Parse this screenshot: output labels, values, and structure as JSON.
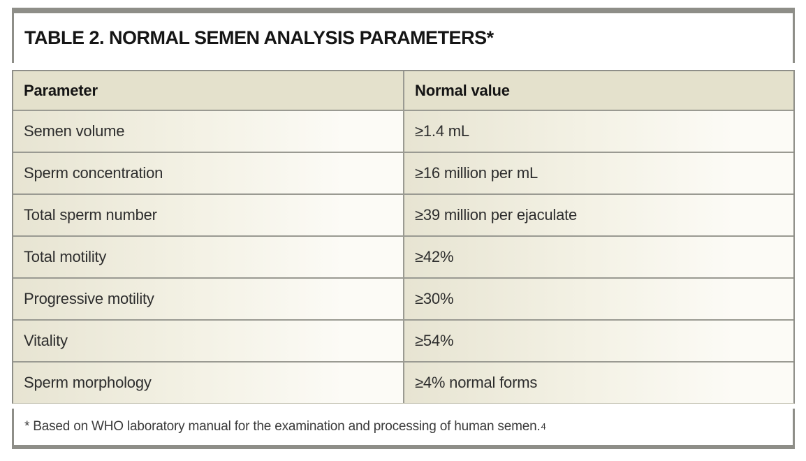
{
  "title": {
    "label": "TABLE 2. ",
    "text": "NORMAL SEMEN ANALYSIS PARAMETERS*"
  },
  "table": {
    "columns": [
      "Parameter",
      "Normal value"
    ],
    "rows": [
      {
        "parameter": "Semen volume",
        "value": "≥1.4 mL"
      },
      {
        "parameter": "Sperm concentration",
        "value": "≥16 million per mL"
      },
      {
        "parameter": "Total sperm number",
        "value": "≥39 million per ejaculate"
      },
      {
        "parameter": "Total motility",
        "value": "≥42%"
      },
      {
        "parameter": "Progressive motility",
        "value": "≥30%"
      },
      {
        "parameter": "Vitality",
        "value": "≥54%"
      },
      {
        "parameter": "Sperm morphology",
        "value": "≥4% normal forms"
      }
    ]
  },
  "footnote": {
    "text": "* Based on WHO laboratory manual for the examination and processing of human semen.",
    "reference_superscript": "4"
  },
  "colors": {
    "frame_gray": "#8e8e88",
    "grid_line_gray": "#9a9a92",
    "header_bg": "#e4e1cc",
    "row_gradient_start": "#e7e4d2",
    "row_gradient_end": "#fcfbf6",
    "title_text": "#151515",
    "body_text": "#2d2d2d"
  }
}
